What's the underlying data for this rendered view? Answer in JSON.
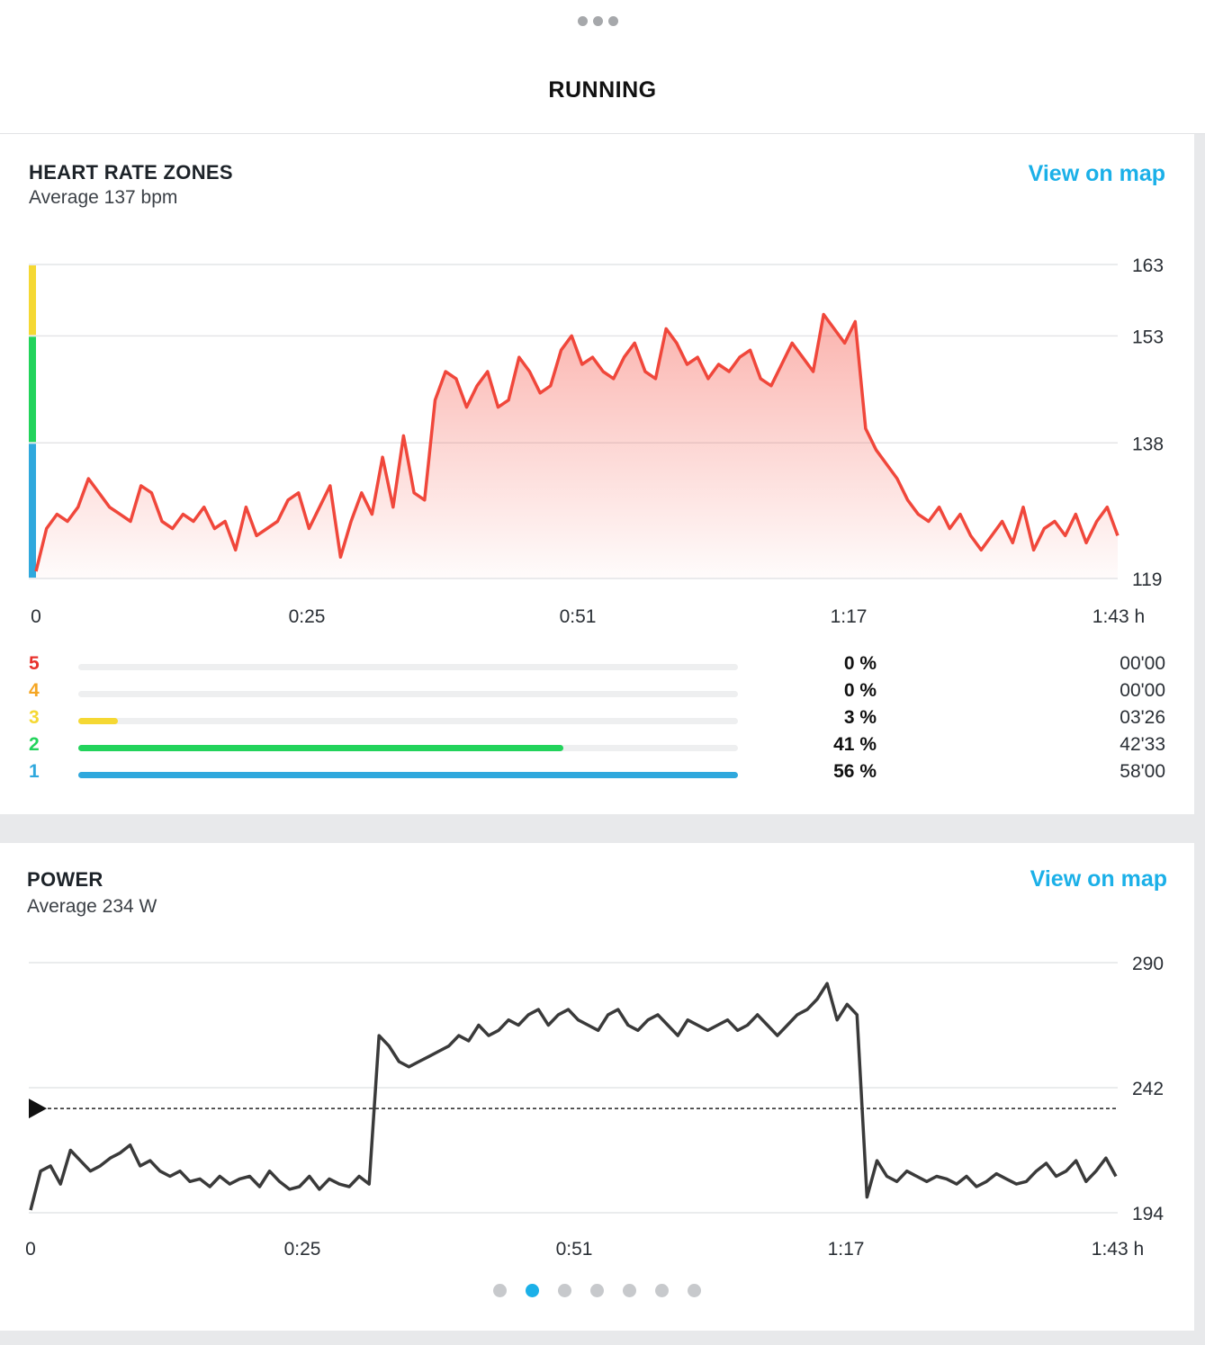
{
  "header": {
    "title": "RUNNING",
    "more_icon": "more-horizontal-icon"
  },
  "heart_rate": {
    "title": "HEART RATE ZONES",
    "average": "Average 137 bpm",
    "map_link": "View on map",
    "zones": [
      {
        "num": "5",
        "pct": "0 %",
        "time": "00'00",
        "fraction": 0.0,
        "color": "#e8312c"
      },
      {
        "num": "4",
        "pct": "0 %",
        "time": "00'00",
        "fraction": 0.0,
        "color": "#f5a623"
      },
      {
        "num": "3",
        "pct": "3 %",
        "time": "03'26",
        "fraction": 0.06,
        "color": "#f5d833"
      },
      {
        "num": "2",
        "pct": "41 %",
        "time": "42'33",
        "fraction": 0.735,
        "color": "#22d35b"
      },
      {
        "num": "1",
        "pct": "56 %",
        "time": "58'00",
        "fraction": 1.0,
        "color": "#2fa8dd"
      }
    ]
  },
  "power": {
    "title": "POWER",
    "average": "Average 234 W",
    "map_link": "View on map"
  },
  "chart_data": [
    {
      "type": "area",
      "title": "HEART RATE ZONES",
      "xlabel": "",
      "ylabel": "",
      "x_ticks": [
        "0",
        "0:25",
        "0:51",
        "1:17",
        "1:43 h"
      ],
      "y_ticks": [
        119,
        138,
        153,
        163
      ],
      "ylim": [
        119,
        163
      ],
      "xlim_minutes": [
        0,
        103
      ],
      "zone_bands": [
        {
          "from": 119,
          "to": 138,
          "color": "#2fa8dd"
        },
        {
          "from": 138,
          "to": 153,
          "color": "#22d35b"
        },
        {
          "from": 153,
          "to": 163,
          "color": "#f5d833"
        }
      ],
      "series": [
        {
          "color": "#f0473b",
          "step_minutes": 1,
          "values": [
            120,
            126,
            128,
            127,
            129,
            133,
            131,
            129,
            128,
            127,
            132,
            131,
            127,
            126,
            128,
            127,
            129,
            126,
            127,
            123,
            129,
            125,
            126,
            127,
            130,
            131,
            126,
            129,
            132,
            122,
            127,
            131,
            128,
            136,
            129,
            139,
            131,
            130,
            144,
            148,
            147,
            143,
            146,
            148,
            143,
            144,
            150,
            148,
            145,
            146,
            151,
            153,
            149,
            150,
            148,
            147,
            150,
            152,
            148,
            147,
            154,
            152,
            149,
            150,
            147,
            149,
            148,
            150,
            151,
            147,
            146,
            149,
            152,
            150,
            148,
            156,
            154,
            152,
            155,
            140,
            137,
            135,
            133,
            130,
            128,
            127,
            129,
            126,
            128,
            125,
            123,
            125,
            127,
            124,
            129,
            123,
            126,
            127,
            125,
            128,
            124,
            127,
            129,
            125
          ]
        }
      ]
    },
    {
      "type": "line",
      "title": "POWER",
      "xlabel": "",
      "ylabel": "",
      "x_ticks": [
        "0",
        "0:25",
        "0:51",
        "1:17",
        "1:43 h"
      ],
      "y_ticks": [
        194,
        242,
        290
      ],
      "ylim": [
        194,
        290
      ],
      "xlim_minutes": [
        0,
        103
      ],
      "average_line": 234,
      "series": [
        {
          "color": "#3a3a3a",
          "step_minutes": 1,
          "values": [
            195,
            210,
            212,
            205,
            218,
            214,
            210,
            212,
            215,
            217,
            220,
            212,
            214,
            210,
            208,
            210,
            206,
            207,
            204,
            208,
            205,
            207,
            208,
            204,
            210,
            206,
            203,
            204,
            208,
            203,
            207,
            205,
            204,
            208,
            205,
            262,
            258,
            252,
            250,
            252,
            254,
            256,
            258,
            262,
            260,
            266,
            262,
            264,
            268,
            266,
            270,
            272,
            266,
            270,
            272,
            268,
            266,
            264,
            270,
            272,
            266,
            264,
            268,
            270,
            266,
            262,
            268,
            266,
            264,
            266,
            268,
            264,
            266,
            270,
            266,
            262,
            266,
            270,
            272,
            276,
            282,
            268,
            274,
            270,
            200,
            214,
            208,
            206,
            210,
            208,
            206,
            208,
            207,
            205,
            208,
            204,
            206,
            209,
            207,
            205,
            206,
            210,
            213,
            208,
            210,
            214,
            206,
            210,
            215,
            208
          ]
        }
      ]
    }
  ],
  "pager": {
    "count": 7,
    "active": 1
  }
}
